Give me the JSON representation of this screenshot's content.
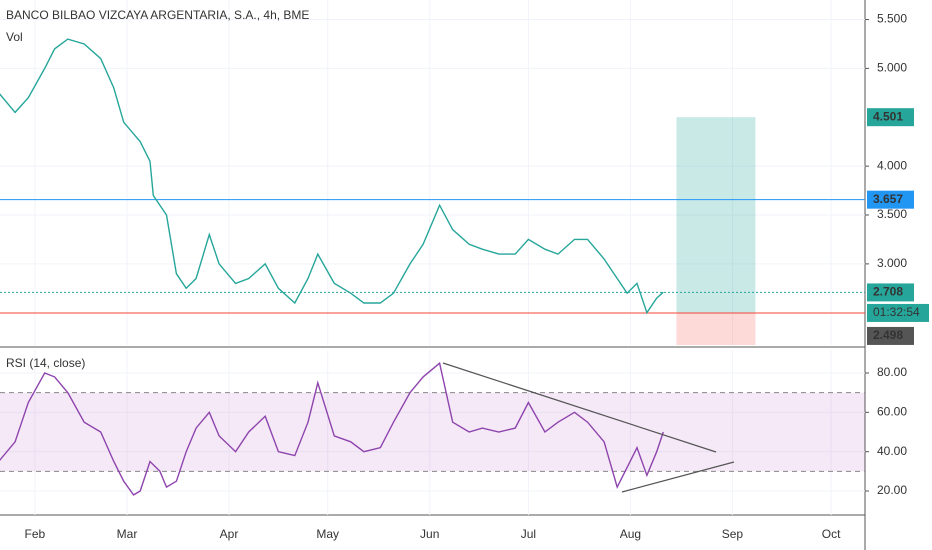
{
  "chart_data": [
    {
      "type": "line",
      "title": "BANCO BILBAO VIZCAYA ARGENTARIA, S.A., 4h, BME",
      "subtitle": "Vol",
      "x": [
        21,
        26,
        30,
        35,
        38,
        42,
        47,
        52,
        56,
        59,
        64,
        67,
        68,
        72,
        75,
        78,
        81,
        85,
        88,
        93,
        97,
        102,
        106,
        111,
        115,
        118,
        123,
        128,
        132,
        137,
        141,
        146,
        150,
        155,
        159,
        164,
        168,
        173,
        178,
        182,
        187,
        191,
        196,
        200,
        205,
        209,
        212,
        215,
        218,
        221,
        223
      ],
      "values": [
        4.75,
        4.55,
        4.7,
        5.0,
        5.2,
        5.3,
        5.25,
        5.1,
        4.8,
        4.45,
        4.25,
        4.05,
        3.7,
        3.5,
        2.9,
        2.75,
        2.85,
        3.3,
        3.0,
        2.8,
        2.85,
        3.0,
        2.75,
        2.6,
        2.85,
        3.1,
        2.8,
        2.7,
        2.6,
        2.6,
        2.7,
        3.0,
        3.2,
        3.6,
        3.35,
        3.2,
        3.15,
        3.1,
        3.1,
        3.25,
        3.15,
        3.1,
        3.25,
        3.25,
        3.05,
        2.85,
        2.7,
        2.8,
        2.5,
        2.65,
        2.71
      ],
      "color": "#26a69a",
      "xlim": [
        21.4,
        284.3
      ],
      "ylim": [
        2.17,
        5.7
      ],
      "yticks": [
        {
          "value": 3,
          "label": "3.000"
        },
        {
          "value": 3.5,
          "label": "3.500"
        },
        {
          "value": 4,
          "label": "4.000"
        },
        {
          "value": 5,
          "label": "5.000"
        },
        {
          "value": 5.5,
          "label": "5.500"
        }
      ],
      "levels": [
        {
          "value": 4.501,
          "color": "#26a69a",
          "line": "none"
        },
        {
          "value": 3.657,
          "color": "#2196f3",
          "line": "solid"
        },
        {
          "value": 2.708,
          "color": "#26a69a",
          "line": "dotted"
        },
        {
          "value": 2.498,
          "color": "#f44336",
          "line": "solid"
        }
      ],
      "countdown": "01:32:54",
      "position_x": [
        227,
        251
      ]
    },
    {
      "type": "line",
      "title": "RSI (14, close)",
      "x": [
        21,
        26,
        30,
        35,
        38,
        42,
        47,
        52,
        56,
        59,
        62,
        64,
        67,
        70,
        72,
        75,
        78,
        81,
        85,
        88,
        93,
        97,
        102,
        106,
        111,
        115,
        118,
        123,
        128,
        132,
        137,
        141,
        146,
        150,
        155,
        159,
        164,
        168,
        173,
        178,
        182,
        187,
        191,
        196,
        200,
        205,
        209,
        212,
        215,
        218,
        221,
        223
      ],
      "values": [
        35,
        45,
        65,
        80,
        78,
        70,
        55,
        50,
        35,
        25,
        18,
        20,
        35,
        30,
        22,
        25,
        40,
        52,
        60,
        48,
        40,
        50,
        58,
        40,
        38,
        55,
        75,
        48,
        45,
        40,
        42,
        55,
        70,
        78,
        85,
        55,
        50,
        52,
        50,
        52,
        65,
        50,
        55,
        60,
        55,
        45,
        22,
        32,
        42,
        28,
        40,
        50
      ],
      "color": "#8e44ad",
      "xlim": [
        21.4,
        284.3
      ],
      "ylim": [
        7.8,
        91.7
      ],
      "band": [
        30,
        70
      ],
      "yticks": [
        {
          "value": 20,
          "label": "20.00"
        },
        {
          "value": 40,
          "label": "40.00"
        },
        {
          "value": 60,
          "label": "60.00"
        },
        {
          "value": 80,
          "label": "80.00"
        }
      ],
      "xticks": [
        {
          "value": 32,
          "label": "Feb"
        },
        {
          "value": 60,
          "label": "Mar"
        },
        {
          "value": 91,
          "label": "Apr"
        },
        {
          "value": 121,
          "label": "May"
        },
        {
          "value": 152,
          "label": "Jun"
        },
        {
          "value": 182,
          "label": "Jul"
        },
        {
          "value": 213,
          "label": "Aug"
        },
        {
          "value": 244,
          "label": "Sep"
        },
        {
          "value": 274,
          "label": "Oct"
        }
      ]
    }
  ]
}
